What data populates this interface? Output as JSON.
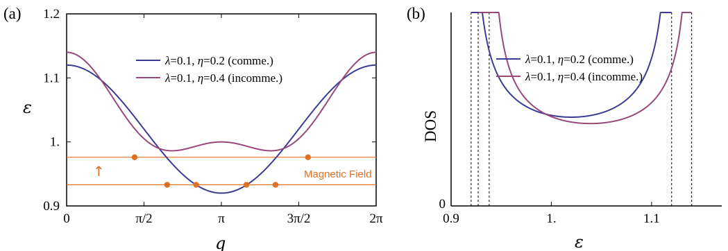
{
  "colors": {
    "comm": "#3b3b96",
    "incomm": "#984878",
    "field": "#e07020",
    "axis": "#000000"
  },
  "chart_data": [
    {
      "type": "line",
      "panel_label": "(a)",
      "xlabel": "q",
      "ylabel": "ε",
      "xlim": [
        0,
        6.2832
      ],
      "ylim": [
        0.9,
        1.2
      ],
      "xticks": [
        {
          "v": 0,
          "label": "0"
        },
        {
          "v": 1.5708,
          "label": "π/2"
        },
        {
          "v": 3.1416,
          "label": "π"
        },
        {
          "v": 4.7124,
          "label": "3π/2"
        },
        {
          "v": 6.2832,
          "label": "2π"
        }
      ],
      "yticks": [
        {
          "v": 0.9,
          "label": "0.9"
        },
        {
          "v": 1.0,
          "label": "1."
        },
        {
          "v": 1.1,
          "label": "1.1"
        },
        {
          "v": 1.2,
          "label": "1.2"
        }
      ],
      "series": [
        {
          "name": "λ=0.1, η=0.2 (comme.)",
          "key": "comm",
          "a0": 1.02,
          "a1": 0.1,
          "a2": 0.0
        },
        {
          "name": "λ=0.1, η=0.4 (incomme.)",
          "key": "incomm",
          "a0": 1.0375,
          "a1": 0.07,
          "a2": 0.0325
        }
      ],
      "field_lines": [
        0.976,
        0.933
      ],
      "field_points": [
        {
          "x": 1.38,
          "y": 0.976
        },
        {
          "x": 4.9,
          "y": 0.976
        },
        {
          "x": 2.04,
          "y": 0.933
        },
        {
          "x": 2.63,
          "y": 0.933
        },
        {
          "x": 3.65,
          "y": 0.933
        },
        {
          "x": 4.24,
          "y": 0.933
        }
      ],
      "annotation": "Magnetic Field",
      "arrow_symbol": "↑",
      "legend": [
        "λ=0.1, η=0.2 (comme.)",
        "λ=0.1, η=0.4 (incomme.)"
      ],
      "legend_placement": "top-right"
    },
    {
      "type": "line",
      "panel_label": "(b)",
      "xlabel": "ε",
      "ylabel": "DOS",
      "xlim": [
        0.9,
        1.17
      ],
      "xticks": [
        {
          "v": 0.9,
          "label": "0.9"
        },
        {
          "v": 1.0,
          "label": "1."
        },
        {
          "v": 1.1,
          "label": "1.1"
        }
      ],
      "yticks": [
        {
          "v": 0,
          "label": "0"
        }
      ],
      "band_edges": {
        "comm": [
          0.92,
          1.12
        ],
        "incomm": [
          0.927,
          0.938,
          1.14
        ]
      },
      "dashed_x": [
        0.92,
        0.927,
        0.938,
        1.12,
        1.14
      ],
      "legend": [
        "λ=0.1, η=0.2 (comme.)",
        "λ=0.1, η=0.4 (incomme.)"
      ],
      "legend_placement": "top-right"
    }
  ],
  "legend_parts": {
    "lam": "λ",
    "eta": "η",
    "rows": [
      {
        "a": "=0.1, ",
        "b": "=0.2 (comme.)"
      },
      {
        "a": "=0.1, ",
        "b": "=0.4 (incomme.)"
      }
    ]
  }
}
